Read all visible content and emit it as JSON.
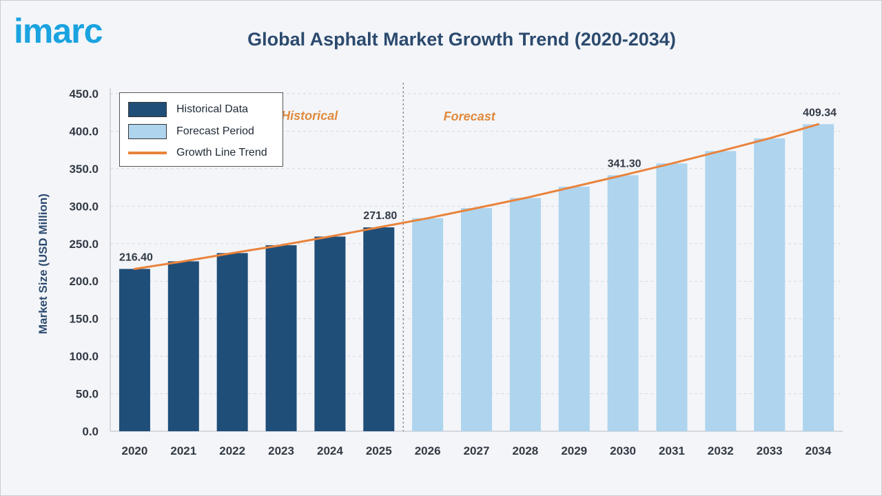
{
  "header": {
    "logo_text": "imarc",
    "title": "Global Asphalt Market Growth Trend (2020-2034)"
  },
  "legend": {
    "items": [
      {
        "label": "Historical Data",
        "color": "#1f4e79",
        "kind": "box"
      },
      {
        "label": "Forecast Period",
        "color": "#aed4ee",
        "kind": "box"
      },
      {
        "label": "Growth Line Trend",
        "color": "#e9833b",
        "kind": "line"
      }
    ]
  },
  "chart_data": {
    "type": "bar",
    "title": "Global Asphalt Market Growth Trend (2020-2034)",
    "xlabel": "",
    "ylabel": "Market Size (USD Million)",
    "ylim": [
      0,
      450
    ],
    "yticks": [
      "0.0",
      "50.0",
      "100.0",
      "150.0",
      "200.0",
      "250.0",
      "300.0",
      "350.0",
      "400.0",
      "450.0"
    ],
    "categories": [
      "2020",
      "2021",
      "2022",
      "2023",
      "2024",
      "2025",
      "2026",
      "2027",
      "2028",
      "2029",
      "2030",
      "2031",
      "2032",
      "2033",
      "2034"
    ],
    "series": [
      {
        "name": "Historical Data",
        "color": "#1f4e79",
        "values": [
          216.4,
          226.5,
          237.5,
          248.0,
          259.5,
          271.8,
          null,
          null,
          null,
          null,
          null,
          null,
          null,
          null,
          null
        ]
      },
      {
        "name": "Forecast Period",
        "color": "#aed4ee",
        "values": [
          null,
          null,
          null,
          null,
          null,
          null,
          284.0,
          297.5,
          311.0,
          326.0,
          341.3,
          357.0,
          373.5,
          390.5,
          409.34
        ]
      }
    ],
    "trend_line": {
      "name": "Growth Line Trend",
      "color": "#e9833b"
    },
    "data_labels": [
      {
        "category": "2020",
        "text": "216.40"
      },
      {
        "category": "2025",
        "text": "271.80"
      },
      {
        "category": "2030",
        "text": "341.30"
      },
      {
        "category": "2034",
        "text": "409.34"
      }
    ],
    "periods": [
      {
        "label": "Historical"
      },
      {
        "label": "Forecast"
      }
    ],
    "grid": true
  }
}
